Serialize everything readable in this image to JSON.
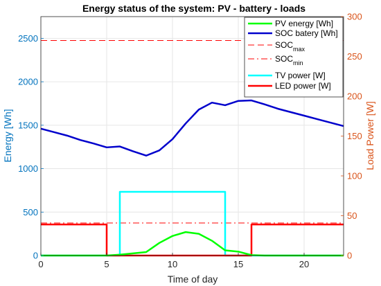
{
  "chart_data": {
    "type": "line",
    "title": "Energy status of the system: PV  - battery - loads",
    "xlabel": "Time of day",
    "ylabel_left": "Energy [Wh]",
    "ylabel_right": "Load Power [W]",
    "xlim": [
      0,
      23
    ],
    "ylim_left": [
      0,
      2750
    ],
    "ylim_right": [
      0,
      300
    ],
    "xticks": [
      0,
      5,
      10,
      15,
      20
    ],
    "yticks_left": [
      0,
      500,
      1000,
      1500,
      2000,
      2500
    ],
    "yticks_right": [
      0,
      50,
      100,
      150,
      200,
      250,
      300
    ],
    "grid": true,
    "legend_position": "top-right",
    "colors": {
      "left_axis": "#0072BD",
      "right_axis": "#D95319",
      "pv": "#00FF00",
      "soc": "#0000CC",
      "soc_limits": "#FF0000",
      "tv": "#00FFFF",
      "led": "#FF0000"
    },
    "series": [
      {
        "name": "PV energy [Wh]",
        "axis": "left",
        "style": "solid",
        "x": [
          0,
          1,
          2,
          3,
          4,
          5,
          6,
          7,
          8,
          9,
          10,
          11,
          12,
          13,
          14,
          15,
          16,
          17,
          18,
          19,
          20,
          21,
          22,
          23
        ],
        "y": [
          0,
          0,
          0,
          0,
          0,
          0,
          10,
          25,
          40,
          145,
          225,
          270,
          250,
          170,
          60,
          45,
          5,
          0,
          0,
          0,
          0,
          0,
          0,
          0
        ]
      },
      {
        "name": "SOC batery [Wh]",
        "axis": "left",
        "style": "solid",
        "x": [
          0,
          1,
          2,
          3,
          4,
          5,
          6,
          7,
          8,
          9,
          10,
          11,
          12,
          13,
          14,
          15,
          16,
          17,
          18,
          19,
          20,
          21,
          22,
          23
        ],
        "y": [
          1460,
          1420,
          1380,
          1330,
          1290,
          1245,
          1255,
          1200,
          1150,
          1210,
          1340,
          1520,
          1680,
          1760,
          1730,
          1780,
          1785,
          1740,
          1690,
          1650,
          1610,
          1570,
          1530,
          1490
        ]
      },
      {
        "name": "SOC_max",
        "label_main": "SOC",
        "label_sub": "max",
        "axis": "left",
        "style": "dashed",
        "x": [
          0,
          23
        ],
        "y": [
          2475,
          2475
        ]
      },
      {
        "name": "SOC_min",
        "label_main": "SOC",
        "label_sub": "min",
        "axis": "left",
        "style": "dashdot",
        "x": [
          0,
          23
        ],
        "y": [
          375,
          375
        ]
      },
      {
        "name": "TV power [W]",
        "axis": "right",
        "style": "solid",
        "x": [
          0,
          6,
          6,
          14,
          14,
          23
        ],
        "y": [
          0,
          0,
          80,
          80,
          0,
          0
        ]
      },
      {
        "name": "LED power [W]",
        "axis": "right",
        "style": "solid",
        "x": [
          0,
          5,
          5,
          16,
          16,
          23
        ],
        "y": [
          39,
          39,
          0,
          0,
          39,
          39
        ]
      }
    ]
  }
}
